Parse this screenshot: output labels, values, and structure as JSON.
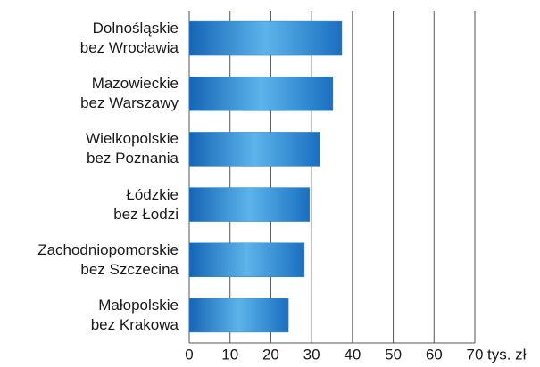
{
  "chart_data": {
    "type": "barh",
    "categories": [
      "Dolnośląskie\nbez Wrocławia",
      "Mazowieckie\nbez Warszawy",
      "Wielkopolskie\nbez Poznania",
      "Łódzkie\nbez Łodzi",
      "Zachodniopomorskie\nbez Szczecina",
      "Małopolskie\nbez Krakowa"
    ],
    "values": [
      37.4,
      35.2,
      32,
      29.5,
      28.2,
      24.3
    ],
    "color": "#2a86d0",
    "xlabel": "tys. zł",
    "xlim": [
      0,
      70
    ],
    "xticks": [
      0,
      10,
      20,
      30,
      40,
      50,
      60,
      70
    ],
    "grid": true
  }
}
